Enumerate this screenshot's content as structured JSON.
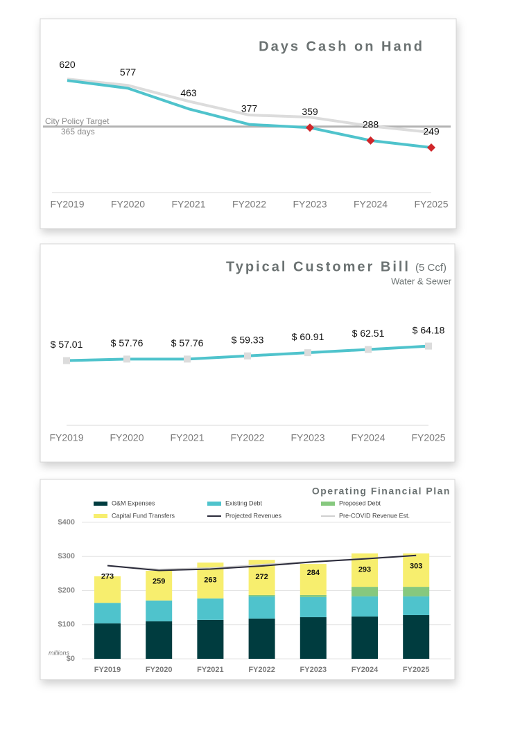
{
  "chart_data": [
    {
      "type": "line",
      "title": "Days Cash on Hand",
      "categories": [
        "FY2019",
        "FY2020",
        "FY2021",
        "FY2022",
        "FY2023",
        "FY2024",
        "FY2025"
      ],
      "series": [
        {
          "color": "#dcdcdc",
          "values": [
            628,
            593,
            505,
            429,
            417,
            368,
            333
          ]
        },
        {
          "color": "#4fc3cc",
          "values": [
            620,
            577,
            463,
            377,
            359,
            288,
            249
          ],
          "data_labels": true
        }
      ],
      "ylim": [
        0,
        820
      ],
      "target": {
        "value": 365,
        "label": "City Policy Target",
        "note": "365 days",
        "color": "#b3b3b3"
      },
      "below_target_color": "#d0262a"
    },
    {
      "type": "line",
      "title": "Typical Customer Bill",
      "title_note": "(5 Ccf)",
      "subtitle": "Water & Sewer",
      "categories": [
        "FY2019",
        "FY2020",
        "FY2021",
        "FY2022",
        "FY2023",
        "FY2024",
        "FY2025"
      ],
      "series": [
        {
          "color": "#4fc3cc",
          "marker_color": "#dcdcdc",
          "data_labels": true,
          "values": [
            57.01,
            57.76,
            57.76,
            59.33,
            60.91,
            62.51,
            64.18
          ],
          "value_labels": [
            "$ 57.01",
            "$ 57.76",
            "$ 57.76",
            "$ 59.33",
            "$ 60.91",
            "$ 62.51",
            "$ 64.18"
          ]
        }
      ],
      "ylim": [
        25,
        100
      ]
    },
    {
      "type": "bar",
      "stacked": true,
      "title": "Operating Financial Plan",
      "y_unit": "millions",
      "categories": [
        "FY2019",
        "FY2020",
        "FY2021",
        "FY2022",
        "FY2023",
        "FY2024",
        "FY2025"
      ],
      "series": [
        {
          "name": "O&M Expenses",
          "color": "#003c3f",
          "values": [
            104,
            110,
            114,
            118,
            122,
            124,
            128
          ]
        },
        {
          "name": "Existing Debt",
          "color": "#4fc3cc",
          "values": [
            60,
            61,
            63,
            65,
            59,
            59,
            55
          ]
        },
        {
          "name": "Proposed Debt",
          "color": "#86c87e",
          "values": [
            0,
            0,
            0,
            4,
            6,
            28,
            28
          ]
        },
        {
          "name": "Capital Fund Transfers",
          "color": "#f7ee6e",
          "values": [
            78,
            87,
            105,
            103,
            91,
            98,
            98
          ]
        },
        {
          "name": "Projected Revenues",
          "type": "line",
          "color": "#2a2a3a",
          "values": [
            273,
            259,
            263,
            272,
            284,
            293,
            303
          ],
          "data_labels": true
        },
        {
          "name": "Pre-COVID Revenue Est.",
          "type": "line",
          "color": "#cfcfcf",
          "values": [
            273,
            262,
            266,
            276,
            285,
            294,
            302
          ]
        }
      ],
      "ylim": [
        0,
        400
      ],
      "yticks": [
        {
          "value": 0,
          "label": "$0"
        },
        {
          "value": 100,
          "label": "$100"
        },
        {
          "value": 200,
          "label": "$200"
        },
        {
          "value": 300,
          "label": "$300"
        },
        {
          "value": 400,
          "label": "$400"
        }
      ],
      "grid": true
    }
  ]
}
